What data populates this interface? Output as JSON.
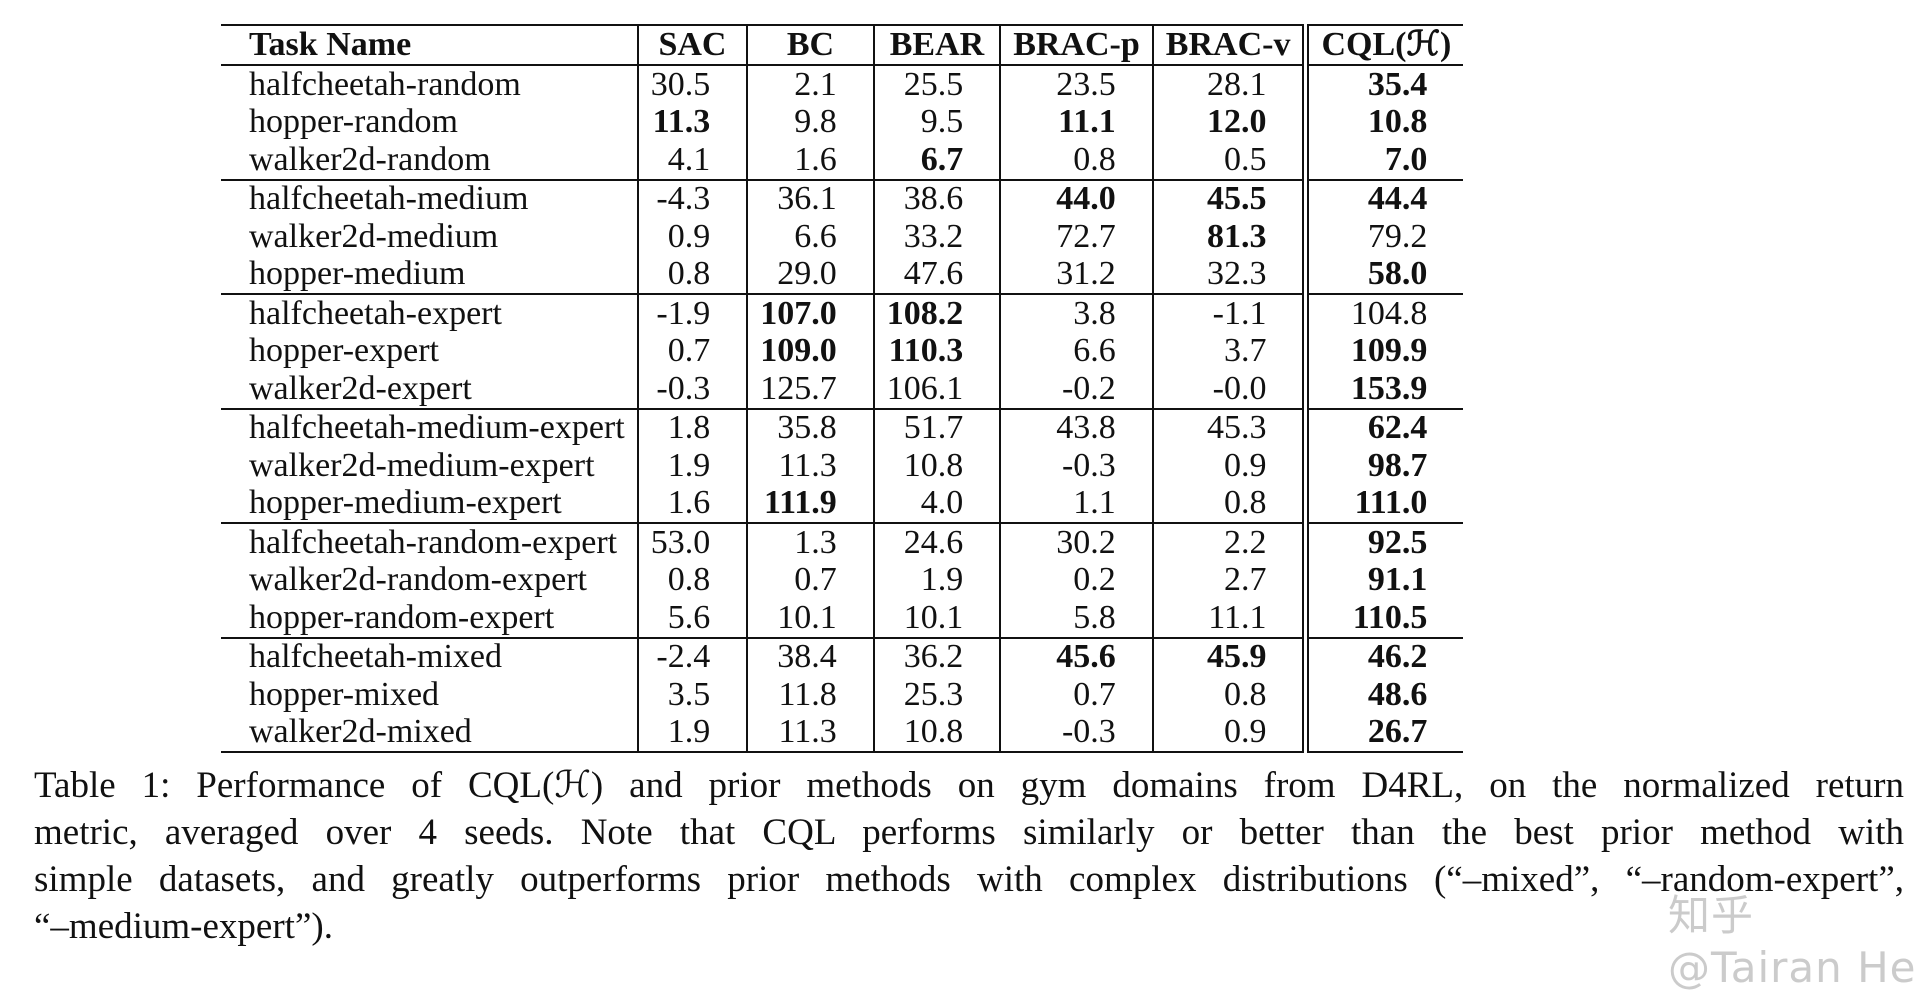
{
  "table": {
    "headers": [
      "Task Name",
      "SAC",
      "BC",
      "BEAR",
      "BRAC-p",
      "BRAC-v",
      "CQL(ℋ)"
    ],
    "rows": [
      {
        "task": "halfcheetah-random",
        "values": [
          "30.5",
          "2.1",
          "25.5",
          "23.5",
          "28.1",
          "35.4"
        ],
        "bold": [
          false,
          false,
          false,
          false,
          false,
          true
        ],
        "group_start": true
      },
      {
        "task": "hopper-random",
        "values": [
          "11.3",
          "9.8",
          "9.5",
          "11.1",
          "12.0",
          "10.8"
        ],
        "bold": [
          true,
          false,
          false,
          true,
          true,
          true
        ]
      },
      {
        "task": "walker2d-random",
        "values": [
          "4.1",
          "1.6",
          "6.7",
          "0.8",
          "0.5",
          "7.0"
        ],
        "bold": [
          false,
          false,
          true,
          false,
          false,
          true
        ]
      },
      {
        "task": "halfcheetah-medium",
        "values": [
          "-4.3",
          "36.1",
          "38.6",
          "44.0",
          "45.5",
          "44.4"
        ],
        "bold": [
          false,
          false,
          false,
          true,
          true,
          true
        ],
        "group_start": true
      },
      {
        "task": "walker2d-medium",
        "values": [
          "0.9",
          "6.6",
          "33.2",
          "72.7",
          "81.3",
          "79.2"
        ],
        "bold": [
          false,
          false,
          false,
          false,
          true,
          false
        ]
      },
      {
        "task": "hopper-medium",
        "values": [
          "0.8",
          "29.0",
          "47.6",
          "31.2",
          "32.3",
          "58.0"
        ],
        "bold": [
          false,
          false,
          false,
          false,
          false,
          true
        ]
      },
      {
        "task": "halfcheetah-expert",
        "values": [
          "-1.9",
          "107.0",
          "108.2",
          "3.8",
          "-1.1",
          "104.8"
        ],
        "bold": [
          false,
          true,
          true,
          false,
          false,
          false
        ],
        "group_start": true
      },
      {
        "task": "hopper-expert",
        "values": [
          "0.7",
          "109.0",
          "110.3",
          "6.6",
          "3.7",
          "109.9"
        ],
        "bold": [
          false,
          true,
          true,
          false,
          false,
          true
        ]
      },
      {
        "task": "walker2d-expert",
        "values": [
          "-0.3",
          "125.7",
          "106.1",
          "-0.2",
          "-0.0",
          "153.9"
        ],
        "bold": [
          false,
          false,
          false,
          false,
          false,
          true
        ]
      },
      {
        "task": "halfcheetah-medium-expert",
        "values": [
          "1.8",
          "35.8",
          "51.7",
          "43.8",
          "45.3",
          "62.4"
        ],
        "bold": [
          false,
          false,
          false,
          false,
          false,
          true
        ],
        "group_start": true
      },
      {
        "task": "walker2d-medium-expert",
        "values": [
          "1.9",
          "11.3",
          "10.8",
          "-0.3",
          "0.9",
          "98.7"
        ],
        "bold": [
          false,
          false,
          false,
          false,
          false,
          true
        ]
      },
      {
        "task": "hopper-medium-expert",
        "values": [
          "1.6",
          "111.9",
          "4.0",
          "1.1",
          "0.8",
          "111.0"
        ],
        "bold": [
          false,
          true,
          false,
          false,
          false,
          true
        ]
      },
      {
        "task": "halfcheetah-random-expert",
        "values": [
          "53.0",
          "1.3",
          "24.6",
          "30.2",
          "2.2",
          "92.5"
        ],
        "bold": [
          false,
          false,
          false,
          false,
          false,
          true
        ],
        "group_start": true
      },
      {
        "task": "walker2d-random-expert",
        "values": [
          "0.8",
          "0.7",
          "1.9",
          "0.2",
          "2.7",
          "91.1"
        ],
        "bold": [
          false,
          false,
          false,
          false,
          false,
          true
        ]
      },
      {
        "task": "hopper-random-expert",
        "values": [
          "5.6",
          "10.1",
          "10.1",
          "5.8",
          "11.1",
          "110.5"
        ],
        "bold": [
          false,
          false,
          false,
          false,
          false,
          true
        ]
      },
      {
        "task": "halfcheetah-mixed",
        "values": [
          "-2.4",
          "38.4",
          "36.2",
          "45.6",
          "45.9",
          "46.2"
        ],
        "bold": [
          false,
          false,
          false,
          true,
          true,
          true
        ],
        "group_start": true
      },
      {
        "task": "hopper-mixed",
        "values": [
          "3.5",
          "11.8",
          "25.3",
          "0.7",
          "0.8",
          "48.6"
        ],
        "bold": [
          false,
          false,
          false,
          false,
          false,
          true
        ]
      },
      {
        "task": "walker2d-mixed",
        "values": [
          "1.9",
          "11.3",
          "10.8",
          "-0.3",
          "0.9",
          "26.7"
        ],
        "bold": [
          false,
          false,
          false,
          false,
          false,
          true
        ]
      }
    ]
  },
  "caption": {
    "lines": [
      "Table 1: Performance of CQL(ℋ) and prior methods on gym domains from D4RL, on the normalized return",
      "metric, averaged over 4 seeds. Note that CQL performs similarly or better than the best prior method with",
      "simple datasets, and greatly outperforms prior methods with complex distributions (“–mixed”, “–random-expert”,",
      "“–medium-expert”)."
    ]
  },
  "watermark": "知乎 @Tairan He"
}
